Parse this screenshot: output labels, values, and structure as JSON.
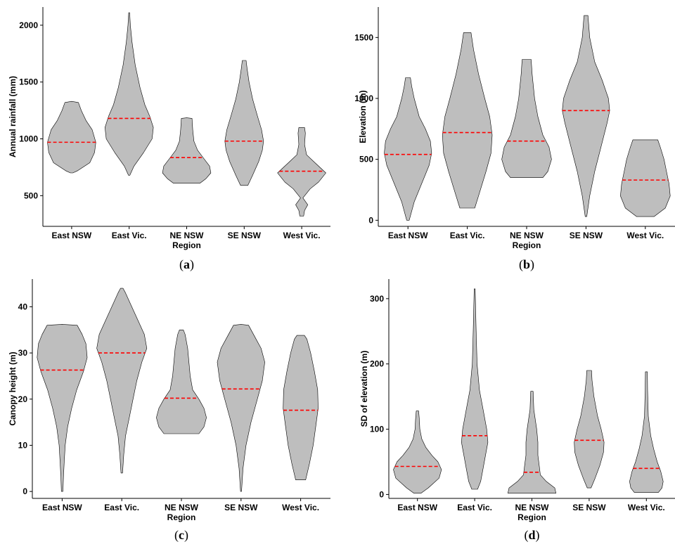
{
  "chart_data": [
    {
      "type": "violin",
      "panel_label": "a",
      "xlabel": "Region",
      "ylabel": "Annual rainfall (mm)",
      "categories": [
        "East NSW",
        "East Vic.",
        "NE NSW",
        "SE NSW",
        "West Vic."
      ],
      "ylim": [
        230,
        2160
      ],
      "yticks": [
        500,
        1000,
        1500,
        2000
      ],
      "median_color": "#ff0000",
      "violin_color": "#bebebe",
      "violins": [
        {
          "median": 970,
          "profile": [
            [
              700,
              0.05
            ],
            [
              720,
              0.25
            ],
            [
              790,
              0.75
            ],
            [
              880,
              0.95
            ],
            [
              970,
              1.0
            ],
            [
              1080,
              0.85
            ],
            [
              1160,
              0.6
            ],
            [
              1250,
              0.4
            ],
            [
              1320,
              0.28
            ],
            [
              1330,
              0.0
            ]
          ]
        },
        {
          "median": 1180,
          "profile": [
            [
              680,
              0.03
            ],
            [
              760,
              0.2
            ],
            [
              880,
              0.6
            ],
            [
              1000,
              0.95
            ],
            [
              1100,
              1.0
            ],
            [
              1200,
              0.85
            ],
            [
              1300,
              0.65
            ],
            [
              1450,
              0.45
            ],
            [
              1650,
              0.25
            ],
            [
              1850,
              0.12
            ],
            [
              2000,
              0.05
            ],
            [
              2110,
              0.02
            ]
          ]
        },
        {
          "median": 835,
          "profile": [
            [
              610,
              0.55
            ],
            [
              650,
              0.8
            ],
            [
              700,
              1.0
            ],
            [
              760,
              0.95
            ],
            [
              830,
              0.7
            ],
            [
              900,
              0.45
            ],
            [
              980,
              0.3
            ],
            [
              1080,
              0.25
            ],
            [
              1180,
              0.22
            ],
            [
              1185,
              0.0
            ]
          ]
        },
        {
          "median": 980,
          "profile": [
            [
              590,
              0.15
            ],
            [
              680,
              0.35
            ],
            [
              800,
              0.6
            ],
            [
              900,
              0.75
            ],
            [
              980,
              0.8
            ],
            [
              1080,
              0.72
            ],
            [
              1200,
              0.55
            ],
            [
              1350,
              0.35
            ],
            [
              1500,
              0.2
            ],
            [
              1620,
              0.12
            ],
            [
              1690,
              0.08
            ]
          ]
        },
        {
          "median": 715,
          "profile": [
            [
              320,
              0.08
            ],
            [
              370,
              0.12
            ],
            [
              420,
              0.25
            ],
            [
              480,
              0.05
            ],
            [
              560,
              0.35
            ],
            [
              620,
              0.7
            ],
            [
              700,
              1.0
            ],
            [
              780,
              0.6
            ],
            [
              860,
              0.2
            ],
            [
              950,
              0.12
            ],
            [
              1050,
              0.15
            ],
            [
              1100,
              0.12
            ]
          ]
        }
      ]
    },
    {
      "type": "violin",
      "panel_label": "b",
      "xlabel": "Region",
      "ylabel": "Elevation (m)",
      "categories": [
        "East NSW",
        "East Vic.",
        "NE NSW",
        "SE NSW",
        "West Vic."
      ],
      "ylim": [
        -50,
        1750
      ],
      "yticks": [
        0,
        500,
        1000,
        1500
      ],
      "median_color": "#ff0000",
      "violin_color": "#bebebe",
      "violins": [
        {
          "median": 540,
          "profile": [
            [
              0,
              0.05
            ],
            [
              150,
              0.25
            ],
            [
              300,
              0.55
            ],
            [
              450,
              0.85
            ],
            [
              550,
              0.95
            ],
            [
              650,
              0.9
            ],
            [
              750,
              0.7
            ],
            [
              850,
              0.45
            ],
            [
              1000,
              0.25
            ],
            [
              1100,
              0.15
            ],
            [
              1170,
              0.1
            ]
          ]
        },
        {
          "median": 720,
          "profile": [
            [
              100,
              0.3
            ],
            [
              200,
              0.45
            ],
            [
              400,
              0.75
            ],
            [
              550,
              0.95
            ],
            [
              700,
              1.0
            ],
            [
              850,
              0.9
            ],
            [
              1000,
              0.7
            ],
            [
              1200,
              0.45
            ],
            [
              1400,
              0.25
            ],
            [
              1540,
              0.15
            ]
          ]
        },
        {
          "median": 650,
          "profile": [
            [
              350,
              0.65
            ],
            [
              400,
              0.85
            ],
            [
              500,
              1.0
            ],
            [
              600,
              0.9
            ],
            [
              700,
              0.65
            ],
            [
              850,
              0.45
            ],
            [
              1000,
              0.32
            ],
            [
              1200,
              0.22
            ],
            [
              1320,
              0.18
            ]
          ]
        },
        {
          "median": 900,
          "profile": [
            [
              30,
              0.03
            ],
            [
              200,
              0.15
            ],
            [
              400,
              0.35
            ],
            [
              600,
              0.6
            ],
            [
              800,
              0.85
            ],
            [
              900,
              0.95
            ],
            [
              1000,
              0.9
            ],
            [
              1150,
              0.65
            ],
            [
              1300,
              0.35
            ],
            [
              1500,
              0.15
            ],
            [
              1680,
              0.08
            ]
          ]
        },
        {
          "median": 330,
          "profile": [
            [
              30,
              0.35
            ],
            [
              100,
              0.8
            ],
            [
              200,
              1.0
            ],
            [
              300,
              0.95
            ],
            [
              400,
              0.85
            ],
            [
              500,
              0.75
            ],
            [
              600,
              0.6
            ],
            [
              660,
              0.5
            ]
          ]
        }
      ]
    },
    {
      "type": "violin",
      "panel_label": "c",
      "xlabel": "Region",
      "ylabel": "Canopy height (m)",
      "categories": [
        "East NSW",
        "East Vic.",
        "NE NSW",
        "SE NSW",
        "West Vic."
      ],
      "ylim": [
        -1.5,
        46
      ],
      "yticks": [
        0,
        10,
        20,
        30,
        40
      ],
      "median_color": "#ff0000",
      "violin_color": "#bebebe",
      "violins": [
        {
          "median": 26.3,
          "profile": [
            [
              0,
              0.03
            ],
            [
              3,
              0.05
            ],
            [
              6,
              0.08
            ],
            [
              10,
              0.12
            ],
            [
              14,
              0.22
            ],
            [
              18,
              0.38
            ],
            [
              22,
              0.58
            ],
            [
              26,
              0.85
            ],
            [
              29,
              1.0
            ],
            [
              32,
              0.95
            ],
            [
              34,
              0.8
            ],
            [
              36,
              0.6
            ],
            [
              36.2,
              0.0
            ]
          ]
        },
        {
          "median": 30,
          "profile": [
            [
              4,
              0.03
            ],
            [
              8,
              0.08
            ],
            [
              12,
              0.15
            ],
            [
              16,
              0.3
            ],
            [
              20,
              0.45
            ],
            [
              24,
              0.6
            ],
            [
              28,
              0.8
            ],
            [
              31,
              1.0
            ],
            [
              34,
              0.9
            ],
            [
              37,
              0.65
            ],
            [
              40,
              0.4
            ],
            [
              43,
              0.15
            ],
            [
              44,
              0.05
            ]
          ]
        },
        {
          "median": 20.2,
          "profile": [
            [
              12.5,
              0.7
            ],
            [
              14,
              0.9
            ],
            [
              16,
              1.0
            ],
            [
              18,
              0.9
            ],
            [
              20,
              0.7
            ],
            [
              22,
              0.45
            ],
            [
              25,
              0.35
            ],
            [
              28,
              0.3
            ],
            [
              31,
              0.25
            ],
            [
              34,
              0.15
            ],
            [
              35,
              0.08
            ]
          ]
        },
        {
          "median": 22.2,
          "profile": [
            [
              0,
              0.02
            ],
            [
              5,
              0.08
            ],
            [
              10,
              0.2
            ],
            [
              15,
              0.4
            ],
            [
              20,
              0.65
            ],
            [
              24,
              0.85
            ],
            [
              28,
              0.95
            ],
            [
              31,
              0.8
            ],
            [
              34,
              0.5
            ],
            [
              36,
              0.3
            ],
            [
              36.2,
              0.0
            ]
          ]
        },
        {
          "median": 17.6,
          "profile": [
            [
              2.5,
              0.2
            ],
            [
              6,
              0.35
            ],
            [
              10,
              0.5
            ],
            [
              14,
              0.6
            ],
            [
              18,
              0.7
            ],
            [
              22,
              0.68
            ],
            [
              26,
              0.55
            ],
            [
              30,
              0.4
            ],
            [
              33,
              0.25
            ],
            [
              33.8,
              0.15
            ]
          ]
        }
      ]
    },
    {
      "type": "violin",
      "panel_label": "d",
      "xlabel": "Region",
      "ylabel": "SD of elevation (m)",
      "categories": [
        "East NSW",
        "East Vic.",
        "NE NSW",
        "SE NSW",
        "West Vic."
      ],
      "ylim": [
        -6,
        330
      ],
      "yticks": [
        0,
        100,
        200,
        300
      ],
      "median_color": "#ff0000",
      "violin_color": "#bebebe",
      "violins": [
        {
          "median": 43,
          "profile": [
            [
              2,
              0.15
            ],
            [
              10,
              0.45
            ],
            [
              25,
              0.9
            ],
            [
              38,
              1.0
            ],
            [
              50,
              0.85
            ],
            [
              60,
              0.6
            ],
            [
              72,
              0.35
            ],
            [
              85,
              0.18
            ],
            [
              100,
              0.1
            ],
            [
              115,
              0.08
            ],
            [
              128,
              0.05
            ]
          ]
        },
        {
          "median": 90,
          "profile": [
            [
              8,
              0.12
            ],
            [
              20,
              0.25
            ],
            [
              40,
              0.35
            ],
            [
              60,
              0.45
            ],
            [
              80,
              0.55
            ],
            [
              100,
              0.5
            ],
            [
              130,
              0.35
            ],
            [
              160,
              0.2
            ],
            [
              200,
              0.1
            ],
            [
              250,
              0.06
            ],
            [
              300,
              0.03
            ],
            [
              315,
              0.02
            ]
          ]
        },
        {
          "median": 34,
          "profile": [
            [
              2,
              1.0
            ],
            [
              10,
              0.95
            ],
            [
              20,
              0.6
            ],
            [
              30,
              0.35
            ],
            [
              45,
              0.3
            ],
            [
              60,
              0.25
            ],
            [
              80,
              0.25
            ],
            [
              100,
              0.2
            ],
            [
              130,
              0.08
            ],
            [
              158,
              0.05
            ]
          ]
        },
        {
          "median": 83,
          "profile": [
            [
              10,
              0.08
            ],
            [
              25,
              0.25
            ],
            [
              45,
              0.45
            ],
            [
              65,
              0.6
            ],
            [
              80,
              0.62
            ],
            [
              100,
              0.5
            ],
            [
              120,
              0.35
            ],
            [
              150,
              0.2
            ],
            [
              175,
              0.12
            ],
            [
              190,
              0.1
            ]
          ]
        },
        {
          "median": 40,
          "profile": [
            [
              3,
              0.5
            ],
            [
              10,
              0.65
            ],
            [
              20,
              0.7
            ],
            [
              35,
              0.6
            ],
            [
              50,
              0.45
            ],
            [
              70,
              0.3
            ],
            [
              90,
              0.18
            ],
            [
              120,
              0.08
            ],
            [
              160,
              0.05
            ],
            [
              188,
              0.04
            ]
          ]
        }
      ]
    }
  ]
}
